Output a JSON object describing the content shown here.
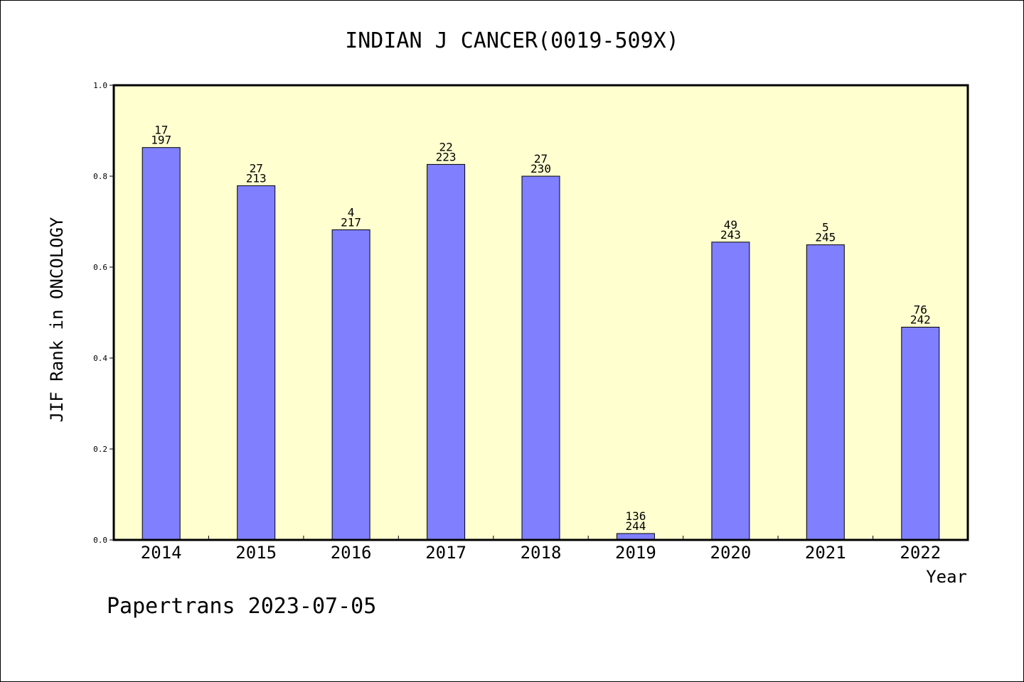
{
  "chart_data": {
    "type": "bar",
    "title": "INDIAN J CANCER(0019-509X)",
    "xlabel": "Year",
    "ylabel": "JIF Rank in ONCOLOGY",
    "ylim": [
      0,
      1.0
    ],
    "yticks": [
      "0.0",
      "0.2",
      "0.4",
      "0.6",
      "0.8",
      "1.0"
    ],
    "categories": [
      "2014",
      "2015",
      "2016",
      "2017",
      "2018",
      "2019",
      "2020",
      "2021",
      "2022"
    ],
    "values": [
      0.863,
      0.779,
      0.682,
      0.826,
      0.8,
      0.014,
      0.655,
      0.649,
      0.468
    ],
    "labels_top": [
      "17",
      "27",
      "4",
      "22",
      "27",
      "136",
      "49",
      "5",
      "76"
    ],
    "labels_bottom": [
      "197",
      "213",
      "217",
      "223",
      "230",
      "244",
      "243",
      "245",
      "242"
    ],
    "grid": false,
    "colors": {
      "bar": "#8080ff",
      "plot_background": "#ffffd0",
      "axis": "#000000"
    }
  },
  "footer": {
    "credit": "Papertrans 2023-07-05"
  }
}
